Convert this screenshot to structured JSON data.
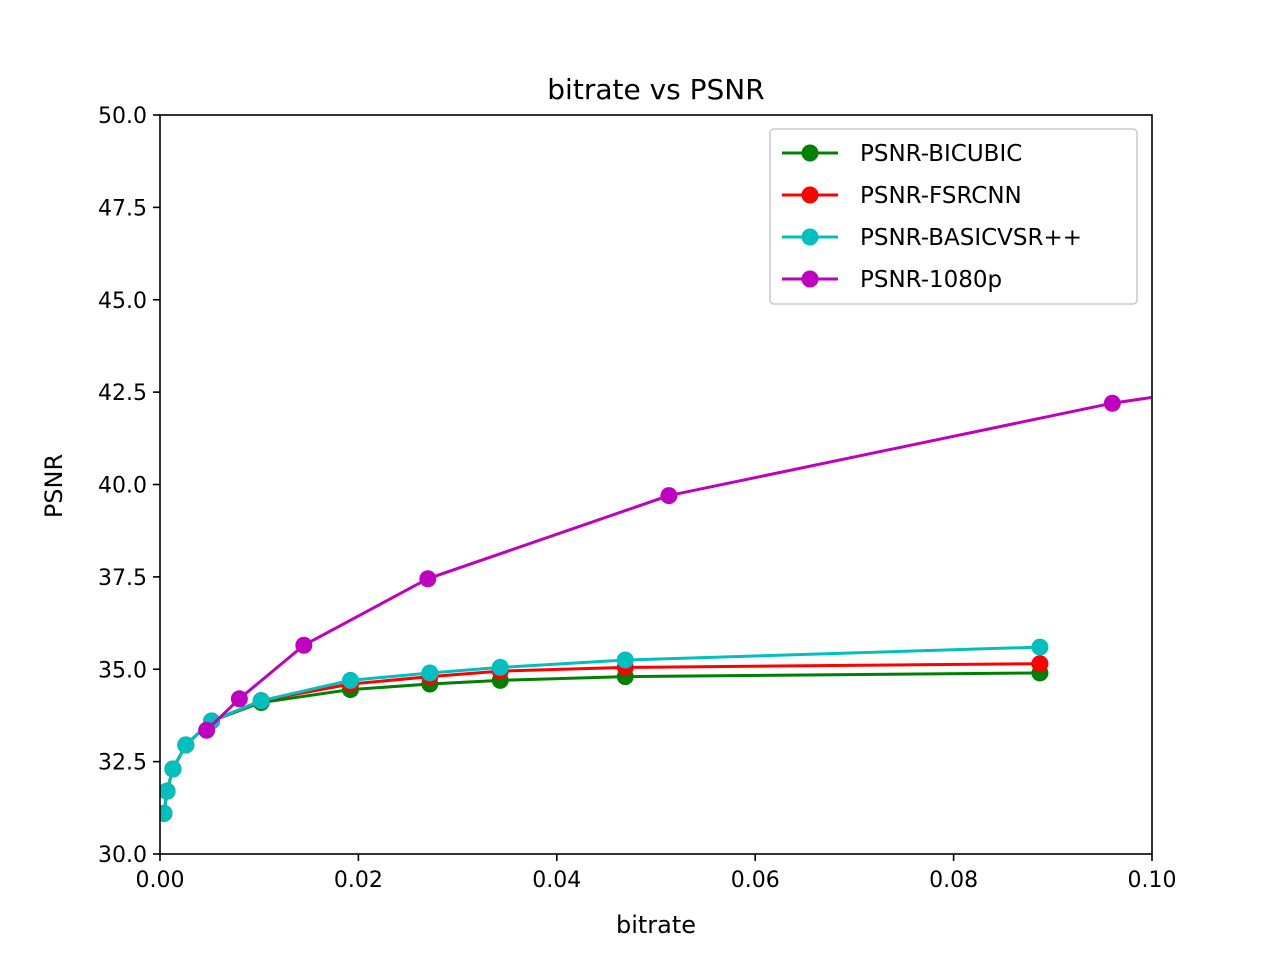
{
  "chart_data": {
    "type": "line",
    "title": "bitrate vs PSNR",
    "xlabel": "bitrate",
    "ylabel": "PSNR",
    "xlim": [
      0.0,
      0.1
    ],
    "ylim": [
      30.0,
      50.0
    ],
    "x_ticks": [
      "0.00",
      "0.02",
      "0.04",
      "0.06",
      "0.08",
      "0.10"
    ],
    "y_ticks": [
      "30.0",
      "32.5",
      "35.0",
      "37.5",
      "40.0",
      "42.5",
      "45.0",
      "47.5",
      "50.0"
    ],
    "grid": false,
    "legend_position": "top-right",
    "series": [
      {
        "name": "PSNR-BICUBIC",
        "color": "#008000",
        "points": [
          [
            0.0004,
            31.1
          ],
          [
            0.0007,
            31.7
          ],
          [
            0.0013,
            32.3
          ],
          [
            0.0026,
            32.95
          ],
          [
            0.0052,
            33.6
          ],
          [
            0.0102,
            34.1
          ],
          [
            0.0192,
            34.45
          ],
          [
            0.0272,
            34.6
          ],
          [
            0.0343,
            34.7
          ],
          [
            0.0469,
            34.8
          ],
          [
            0.0887,
            34.9
          ]
        ]
      },
      {
        "name": "PSNR-FSRCNN",
        "color": "#ff0000",
        "points": [
          [
            0.0004,
            31.1
          ],
          [
            0.0007,
            31.7
          ],
          [
            0.0013,
            32.3
          ],
          [
            0.0026,
            32.95
          ],
          [
            0.0052,
            33.6
          ],
          [
            0.0102,
            34.15
          ],
          [
            0.0192,
            34.6
          ],
          [
            0.0272,
            34.8
          ],
          [
            0.0343,
            34.95
          ],
          [
            0.0469,
            35.05
          ],
          [
            0.0887,
            35.15
          ]
        ]
      },
      {
        "name": "PSNR-BASICVSR++",
        "color": "#00bfbf",
        "points": [
          [
            0.0004,
            31.1
          ],
          [
            0.0007,
            31.7
          ],
          [
            0.0013,
            32.3
          ],
          [
            0.0026,
            32.95
          ],
          [
            0.0052,
            33.6
          ],
          [
            0.0102,
            34.15
          ],
          [
            0.0192,
            34.7
          ],
          [
            0.0272,
            34.9
          ],
          [
            0.0343,
            35.05
          ],
          [
            0.0469,
            35.25
          ],
          [
            0.0887,
            35.6
          ]
        ]
      },
      {
        "name": "PSNR-1080p",
        "color": "#bf00bf",
        "points": [
          [
            0.0047,
            33.35
          ],
          [
            0.008,
            34.2
          ],
          [
            0.0145,
            35.65
          ],
          [
            0.027,
            37.45
          ],
          [
            0.0513,
            39.7
          ],
          [
            0.096,
            42.2
          ],
          [
            0.11,
            42.75
          ]
        ]
      }
    ]
  }
}
